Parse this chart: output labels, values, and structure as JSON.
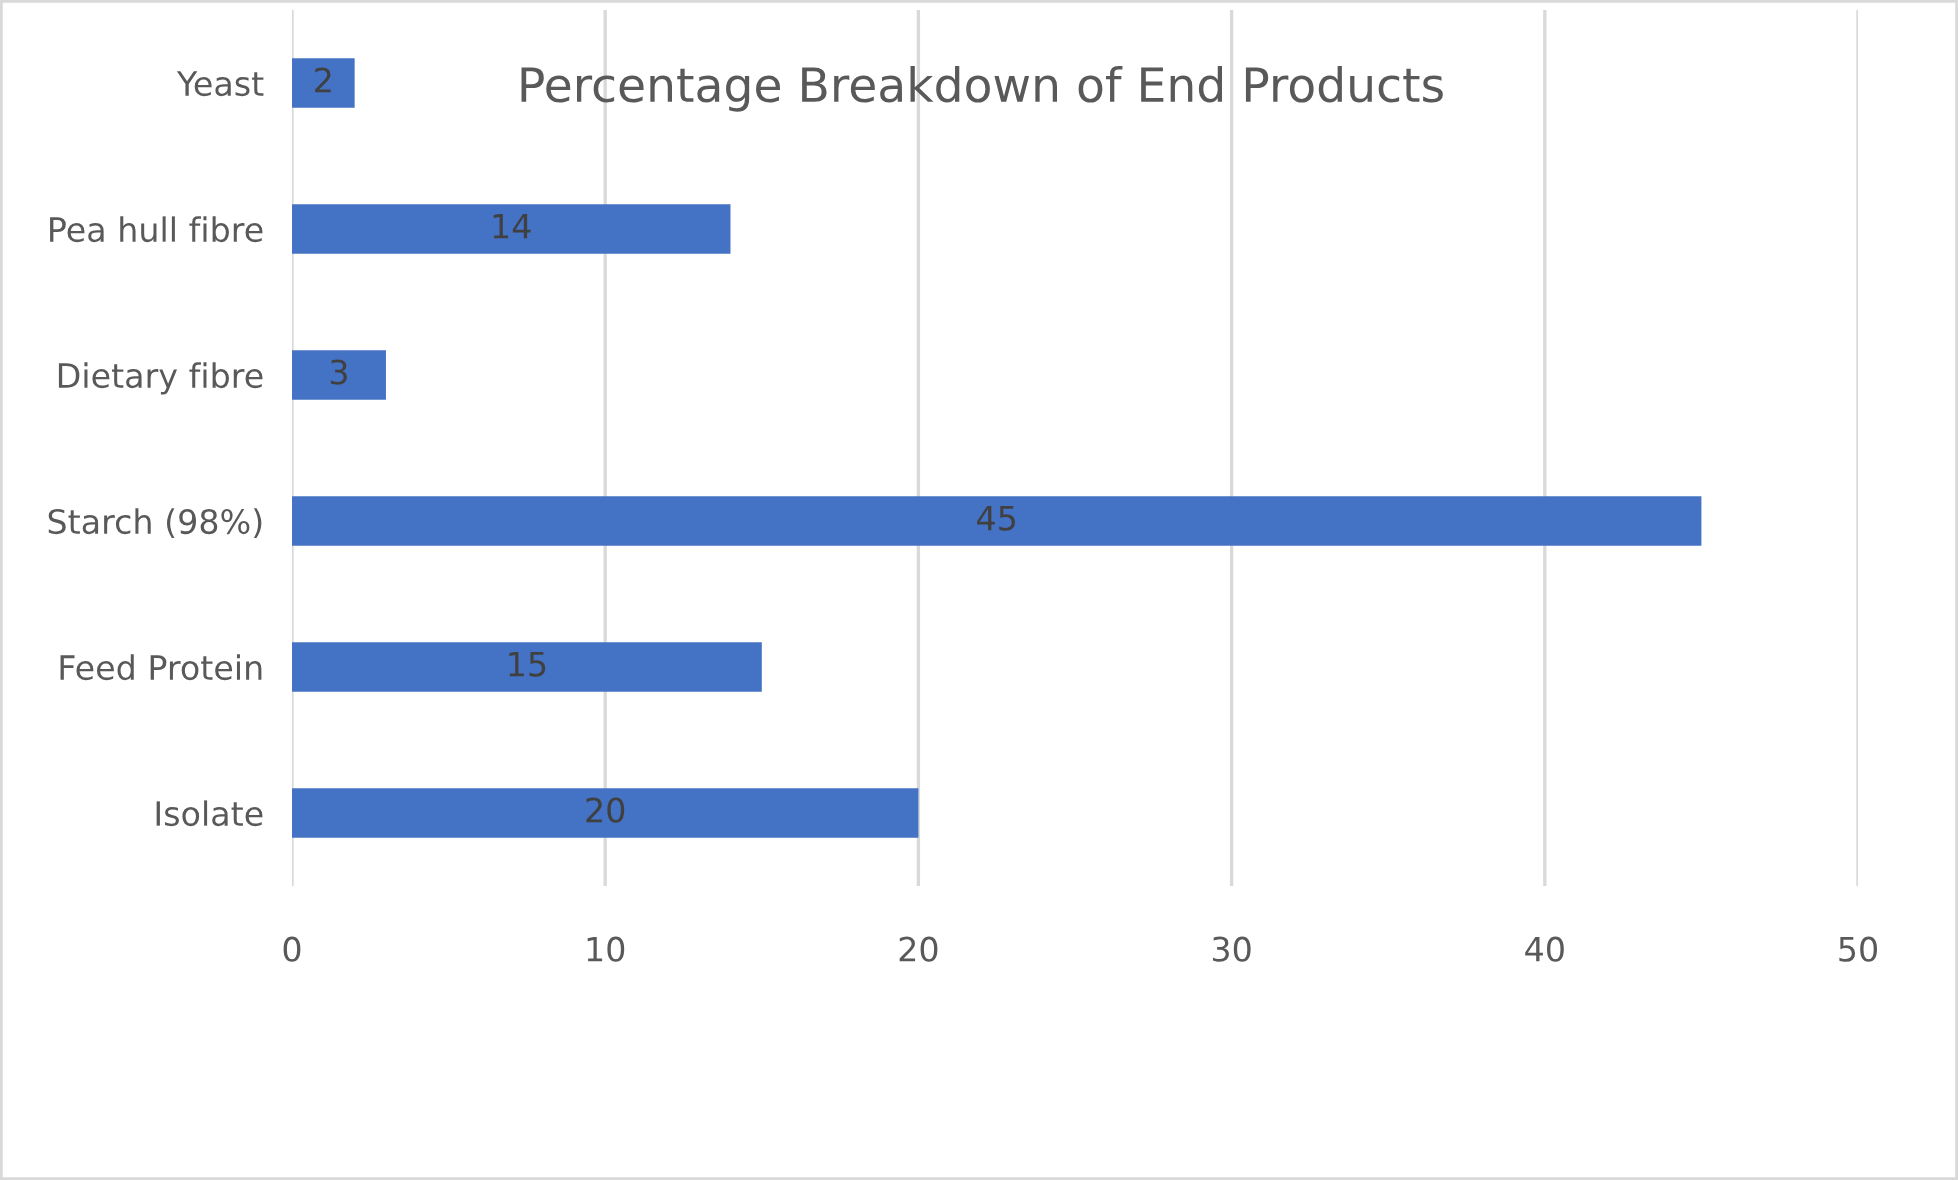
{
  "chart_data": {
    "type": "bar",
    "orientation": "horizontal",
    "title": "Percentage Breakdown of End Products",
    "categories": [
      "Yeast",
      "Pea hull fibre",
      "Dietary fibre",
      "Starch (98%)",
      "Feed Protein",
      "Isolate"
    ],
    "values": [
      2,
      14,
      3,
      45,
      15,
      20
    ],
    "color": "#4472c4",
    "xlim": [
      0,
      50
    ],
    "xticks": [
      0,
      10,
      20,
      30,
      40,
      50
    ],
    "grid": "x",
    "data_labels": true,
    "legend": false
  }
}
